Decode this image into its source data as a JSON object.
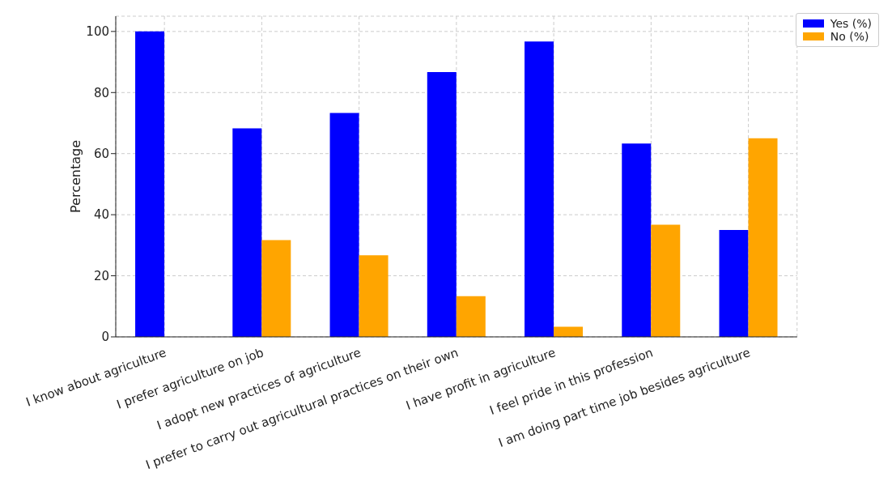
{
  "chart_data": {
    "type": "bar",
    "ylabel": "Percentage",
    "categories": [
      "I know about agriculture",
      "I prefer agriculture on job",
      "I adopt new practices of agriculture",
      "I prefer to carry out agricultural practices on their own",
      "I have profit in agriculture",
      "I feel pride in this profession",
      "I am doing part time job besides agriculture"
    ],
    "series": [
      {
        "name": "Yes (%)",
        "color": "#0000ff",
        "values": [
          100,
          68.3,
          73.3,
          86.7,
          96.7,
          63.3,
          35
        ]
      },
      {
        "name": "No (%)",
        "color": "#ffa500",
        "values": [
          0,
          31.7,
          26.7,
          13.3,
          3.3,
          36.7,
          65
        ]
      }
    ],
    "ylim": [
      0,
      105
    ],
    "yticks": [
      0,
      20,
      40,
      60,
      80,
      100
    ],
    "grid": true,
    "legend": "top right"
  }
}
